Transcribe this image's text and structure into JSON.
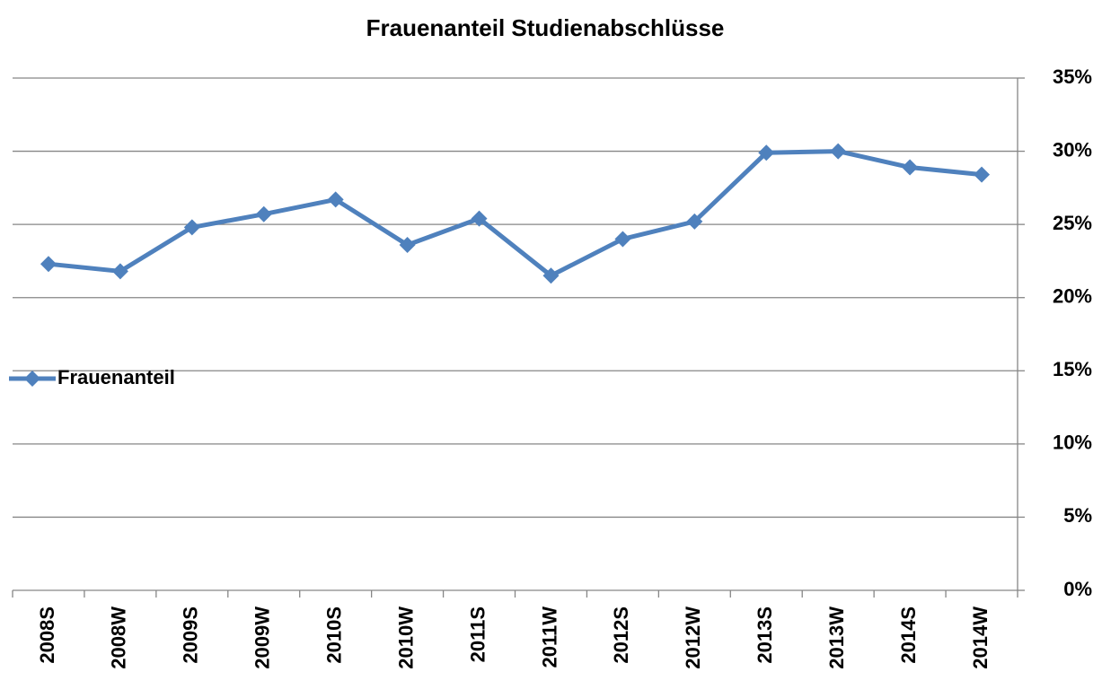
{
  "chart_data": {
    "type": "line",
    "title": "Frauenanteil Studienabschlüsse",
    "categories": [
      "2008S",
      "2008W",
      "2009S",
      "2009W",
      "2010S",
      "2010W",
      "2011S",
      "2011W",
      "2012S",
      "2012W",
      "2013S",
      "2013W",
      "2014S",
      "2014W"
    ],
    "series": [
      {
        "name": "Frauenanteil",
        "color": "#4f81bd",
        "values": [
          22.3,
          21.8,
          24.8,
          25.7,
          26.7,
          23.6,
          25.4,
          21.5,
          24.0,
          25.2,
          29.9,
          30.0,
          28.9,
          28.4
        ]
      }
    ],
    "ylim": [
      0,
      35
    ],
    "yticks": [
      {
        "value": 0,
        "label": "0%"
      },
      {
        "value": 5,
        "label": "5%"
      },
      {
        "value": 10,
        "label": "10%"
      },
      {
        "value": 15,
        "label": "15%"
      },
      {
        "value": 20,
        "label": "20%"
      },
      {
        "value": 25,
        "label": "25%"
      },
      {
        "value": 30,
        "label": "30%"
      },
      {
        "value": 35,
        "label": "35%"
      }
    ],
    "grid": true,
    "legend": "left"
  }
}
